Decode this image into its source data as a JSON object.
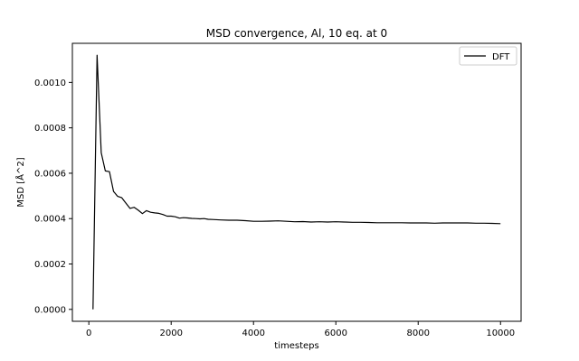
{
  "chart_data": {
    "type": "line",
    "title": "MSD convergence, Al, 10 eq. at 0",
    "xlabel": "timesteps",
    "ylabel": "MSD [Å^2]",
    "xlim": [
      -400,
      10500
    ],
    "ylim": [
      -5.25e-05,
      0.0011725
    ],
    "xticks": [
      0,
      2000,
      4000,
      6000,
      8000,
      10000
    ],
    "xtick_labels": [
      "0",
      "2000",
      "4000",
      "6000",
      "8000",
      "10000"
    ],
    "yticks": [
      0.0,
      0.0002,
      0.0004,
      0.0006,
      0.0008,
      0.001
    ],
    "ytick_labels": [
      "0.0000",
      "0.0002",
      "0.0004",
      "0.0006",
      "0.0008",
      "0.0010"
    ],
    "grid": false,
    "legend_position": "top-right",
    "series": [
      {
        "name": "DFT",
        "color": "#000000",
        "x": [
          100,
          200,
          300,
          400,
          500,
          600,
          700,
          800,
          900,
          1000,
          1100,
          1200,
          1300,
          1400,
          1500,
          1600,
          1700,
          1800,
          1900,
          2000,
          2100,
          2200,
          2300,
          2400,
          2500,
          2600,
          2700,
          2800,
          2900,
          3000,
          3200,
          3400,
          3600,
          3800,
          4000,
          4200,
          4400,
          4600,
          4800,
          5000,
          5200,
          5400,
          5600,
          5800,
          6000,
          6200,
          6400,
          6600,
          6800,
          7000,
          7200,
          7400,
          7600,
          7800,
          8000,
          8200,
          8400,
          8600,
          8800,
          9000,
          9200,
          9400,
          9600,
          9800,
          10000
        ],
        "y": [
          0.0,
          0.00112,
          0.00069,
          0.00061,
          0.000607,
          0.00052,
          0.000498,
          0.000492,
          0.000468,
          0.000445,
          0.00045,
          0.000437,
          0.000422,
          0.000435,
          0.000428,
          0.000425,
          0.000423,
          0.000418,
          0.000411,
          0.000411,
          0.000408,
          0.000402,
          0.000404,
          0.000403,
          0.000401,
          0.0004,
          0.000399,
          0.0004,
          0.000397,
          0.000396,
          0.000394,
          0.000393,
          0.000393,
          0.000391,
          0.000388,
          0.000388,
          0.000389,
          0.00039,
          0.000388,
          0.000386,
          0.000387,
          0.000385,
          0.000386,
          0.000385,
          0.000386,
          0.000385,
          0.000384,
          0.000384,
          0.000383,
          0.000382,
          0.000382,
          0.000382,
          0.000382,
          0.000381,
          0.000381,
          0.000381,
          0.00038,
          0.000381,
          0.000381,
          0.000381,
          0.000381,
          0.00038,
          0.00038,
          0.000379,
          0.000378
        ]
      }
    ]
  }
}
